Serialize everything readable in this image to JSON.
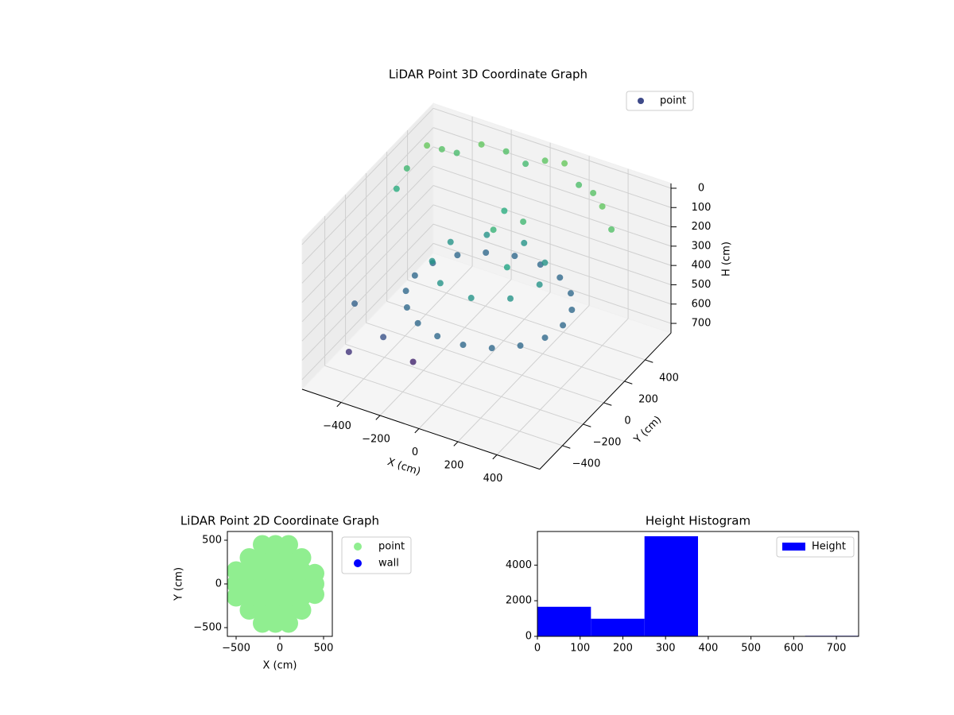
{
  "chart_data": [
    {
      "type": "scatter3d",
      "title": "LiDAR Point 3D Coordinate Graph",
      "xlabel": "X (cm)",
      "ylabel": "Y (cm)",
      "zlabel": "H (cm)",
      "series": [
        {
          "name": "point",
          "color": "#3e4a89",
          "x": [
            410,
            387,
            321,
            220,
            96,
            -36,
            -160,
            -261,
            -327,
            -350,
            -327,
            -261,
            -160,
            -36,
            96,
            220,
            321,
            387,
            290,
            229,
            75,
            -100,
            -214,
            -214,
            -100,
            75,
            229,
            0,
            100,
            -50,
            150,
            -500,
            -450,
            -400,
            -300,
            -200,
            -100,
            0,
            100,
            200,
            300,
            400,
            500,
            -550,
            -550,
            -500,
            -450,
            -300,
            -200
          ],
          "y": [
            0,
            130,
            244,
            329,
            374,
            374,
            329,
            244,
            130,
            0,
            -130,
            -244,
            -329,
            -374,
            -374,
            -329,
            -244,
            -130,
            0,
            167,
            256,
            225,
            89,
            -89,
            -225,
            -256,
            -167,
            100,
            200,
            300,
            -50,
            400,
            450,
            500,
            550,
            600,
            600,
            600,
            600,
            550,
            500,
            400,
            300,
            300,
            200,
            -300,
            -450,
            -400,
            -300
          ],
          "z": [
            420,
            420,
            420,
            420,
            420,
            420,
            420,
            420,
            420,
            420,
            420,
            420,
            420,
            420,
            420,
            420,
            420,
            420,
            250,
            250,
            250,
            250,
            250,
            250,
            250,
            250,
            250,
            120,
            100,
            150,
            180,
            20,
            50,
            80,
            30,
            60,
            90,
            40,
            20,
            70,
            50,
            30,
            60,
            100,
            150,
            450,
            600,
            500,
            650
          ]
        }
      ],
      "colormap": [
        "#7ad151",
        "#22a884",
        "#2a788e",
        "#414487",
        "#440154"
      ],
      "xlim": [
        -600,
        620
      ],
      "ylim": [
        -620,
        650
      ],
      "zlim": [
        -25,
        750
      ],
      "zinvert": true,
      "xticks": [
        {
          "value": -400,
          "label": "−400"
        },
        {
          "value": -200,
          "label": "−200"
        },
        0,
        200,
        400
      ],
      "yticks": [
        {
          "value": -400,
          "label": "−400"
        },
        {
          "value": -200,
          "label": "−200"
        },
        0,
        200,
        400
      ],
      "zticks": [
        0,
        100,
        200,
        300,
        400,
        500,
        600,
        700
      ],
      "grid": true,
      "legend_loc": "upper right"
    },
    {
      "type": "scatter",
      "title": "LiDAR Point 2D Coordinate Graph",
      "xlabel": "X (cm)",
      "ylabel": "Y (cm)",
      "series": [
        {
          "name": "point",
          "color": "#90ee90",
          "x": [
            -500,
            -500,
            -500,
            -350,
            -350,
            -350,
            -350,
            -350,
            -200,
            -200,
            -200,
            -200,
            -200,
            -200,
            -200,
            -50,
            -50,
            -50,
            -50,
            -50,
            -50,
            -50,
            100,
            100,
            100,
            100,
            100,
            100,
            100,
            250,
            250,
            250,
            250,
            250,
            400,
            400,
            400
          ],
          "y": [
            -150,
            0,
            150,
            -300,
            -150,
            0,
            150,
            300,
            -450,
            -300,
            -150,
            0,
            150,
            300,
            450,
            -450,
            -300,
            -150,
            0,
            150,
            300,
            450,
            -450,
            -300,
            -150,
            0,
            150,
            300,
            450,
            -300,
            -150,
            0,
            150,
            300,
            -120,
            0,
            120
          ]
        },
        {
          "name": "wall",
          "color": "#0000ff",
          "x": [],
          "y": []
        }
      ],
      "xlim": [
        -600,
        600
      ],
      "ylim": [
        -600,
        600
      ],
      "xticks": [
        {
          "value": -500,
          "label": "−500"
        },
        0,
        500
      ],
      "yticks": [
        {
          "value": -500,
          "label": "−500"
        },
        0,
        500
      ],
      "legend_loc": "outside right"
    },
    {
      "type": "histogram",
      "title": "Height Histogram",
      "name": "Height",
      "color": "#0000ff",
      "bins": [
        0,
        125.3,
        250.7,
        376,
        501.3,
        626.7,
        752
      ],
      "counts": [
        1660,
        990,
        5620,
        0,
        0,
        30
      ],
      "xlim": [
        0,
        752
      ],
      "ylim": [
        0,
        5888
      ],
      "xticks": [
        0,
        100,
        200,
        300,
        400,
        500,
        600,
        700
      ],
      "yticks": [
        0,
        2000,
        4000
      ],
      "legend_loc": "upper right"
    }
  ]
}
